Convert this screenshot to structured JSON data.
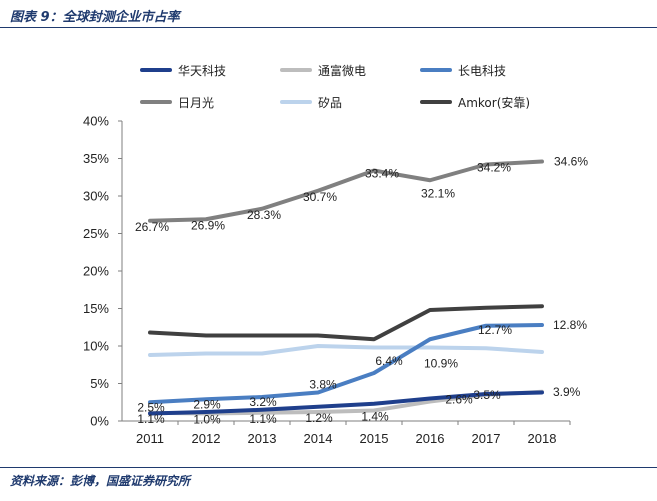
{
  "header": {
    "title": "图表 9：全球封测企业市占率"
  },
  "footer": {
    "source": "资料来源：彭博，国盛证券研究所"
  },
  "chart_data": {
    "type": "line",
    "title": "全球封测企业市占率",
    "xlabel": "",
    "ylabel": "",
    "ylim": [
      0,
      40
    ],
    "y_ticks": [
      "0%",
      "5%",
      "10%",
      "15%",
      "20%",
      "25%",
      "30%",
      "35%",
      "40%"
    ],
    "categories": [
      "2011",
      "2012",
      "2013",
      "2014",
      "2015",
      "2016",
      "2017",
      "2018"
    ],
    "legend_position": "top",
    "series": [
      {
        "name": "华天科技",
        "color": "#1f3f8c",
        "values": [
          1.0,
          1.2,
          1.5,
          1.9,
          2.3,
          3.0,
          3.6,
          3.8
        ],
        "labels": []
      },
      {
        "name": "通富微电",
        "color": "#bdbdbd",
        "values": [
          1.1,
          1.0,
          1.1,
          1.2,
          1.4,
          2.6,
          3.5,
          3.9
        ],
        "labels": [
          "1.1%",
          "1.0%",
          "1.1%",
          "1.2%",
          "1.4%",
          "2.6%",
          "3.5%",
          "3.9%"
        ]
      },
      {
        "name": "长电科技",
        "color": "#4a7ec2",
        "values": [
          2.5,
          2.9,
          3.2,
          3.8,
          6.4,
          10.9,
          12.7,
          12.8
        ],
        "labels": [
          "2.5%",
          "2.9%",
          "3.2%",
          "3.8%",
          "6.4%",
          "10.9%",
          "12.7%",
          "12.8%"
        ]
      },
      {
        "name": "日月光",
        "color": "#808080",
        "values": [
          26.7,
          26.9,
          28.3,
          30.7,
          33.4,
          32.1,
          34.2,
          34.6
        ],
        "labels": [
          "26.7%",
          "26.9%",
          "28.3%",
          "30.7%",
          "33.4%",
          "32.1%",
          "34.2%",
          "34.6%"
        ]
      },
      {
        "name": "矽品",
        "color": "#bcd3ec",
        "values": [
          8.8,
          9.0,
          9.0,
          10.0,
          9.8,
          9.8,
          9.7,
          9.2
        ],
        "labels": []
      },
      {
        "name": "Amkor(安靠)",
        "color": "#404040",
        "values": [
          11.8,
          11.4,
          11.4,
          11.4,
          10.9,
          14.8,
          15.1,
          15.3
        ],
        "labels": []
      }
    ]
  }
}
